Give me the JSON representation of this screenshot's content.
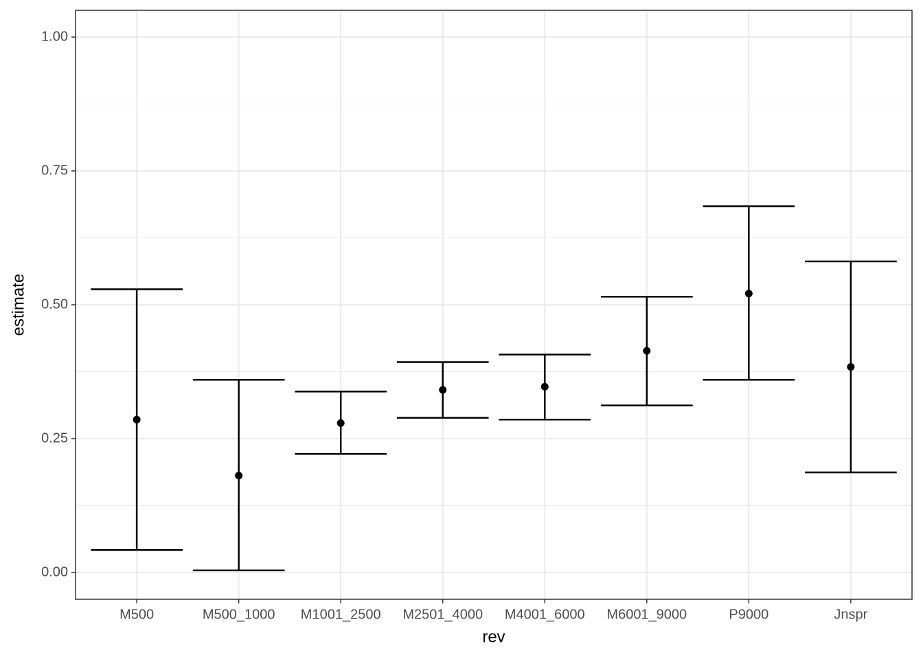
{
  "chart_data": {
    "type": "errorbar",
    "x_label": "rev",
    "y_label": "estimate",
    "categories": [
      "M500",
      "M500_1000",
      "M1001_2500",
      "M2501_4000",
      "M4001_6000",
      "M6001_9000",
      "P9000",
      "Jnspr"
    ],
    "series": [
      {
        "color": "#000000",
        "values": [
          0.2855,
          0.181,
          0.279,
          0.341,
          0.347,
          0.414,
          0.521,
          0.384
        ],
        "lower": [
          0.042,
          0.004,
          0.2215,
          0.289,
          0.2855,
          0.312,
          0.36,
          0.187
        ],
        "upper": [
          0.529,
          0.36,
          0.338,
          0.393,
          0.407,
          0.515,
          0.684,
          0.581
        ]
      }
    ],
    "ylim": [
      -0.05,
      1.05
    ],
    "yticks": [
      {
        "value": 0,
        "label": "0.00"
      },
      {
        "value": 0.25,
        "label": "0.25"
      },
      {
        "value": 0.5,
        "label": "0.50"
      },
      {
        "value": 0.75,
        "label": "0.75"
      },
      {
        "value": 1,
        "label": "1.00"
      }
    ],
    "y_minor_grid": [
      0.125,
      0.375,
      0.625,
      0.875
    ],
    "grid": true
  }
}
